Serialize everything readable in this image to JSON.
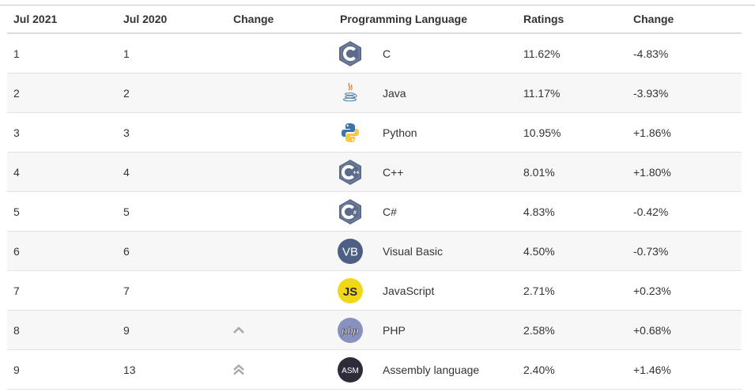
{
  "table": {
    "headers": [
      "Jul 2021",
      "Jul 2020",
      "Change",
      "Programming Language",
      "Ratings",
      "Change"
    ],
    "rows": [
      {
        "jul2021": "1",
        "jul2020": "1",
        "change_icon": "",
        "logo": "c-logo-icon",
        "language": "C",
        "rating": "11.62%",
        "change": "-4.83%"
      },
      {
        "jul2021": "2",
        "jul2020": "2",
        "change_icon": "",
        "logo": "java-logo-icon",
        "language": "Java",
        "rating": "11.17%",
        "change": "-3.93%"
      },
      {
        "jul2021": "3",
        "jul2020": "3",
        "change_icon": "",
        "logo": "python-logo-icon",
        "language": "Python",
        "rating": "10.95%",
        "change": "+1.86%"
      },
      {
        "jul2021": "4",
        "jul2020": "4",
        "change_icon": "",
        "logo": "cpp-logo-icon",
        "language": "C++",
        "rating": "8.01%",
        "change": "+1.80%"
      },
      {
        "jul2021": "5",
        "jul2020": "5",
        "change_icon": "",
        "logo": "csharp-logo-icon",
        "language": "C#",
        "rating": "4.83%",
        "change": "-0.42%"
      },
      {
        "jul2021": "6",
        "jul2020": "6",
        "change_icon": "",
        "logo": "visual-basic-logo-icon",
        "language": "Visual Basic",
        "rating": "4.50%",
        "change": "-0.73%"
      },
      {
        "jul2021": "7",
        "jul2020": "7",
        "change_icon": "",
        "logo": "javascript-logo-icon",
        "language": "JavaScript",
        "rating": "2.71%",
        "change": "+0.23%"
      },
      {
        "jul2021": "8",
        "jul2020": "9",
        "change_icon": "chevron-up-icon",
        "logo": "php-logo-icon",
        "language": "PHP",
        "rating": "2.58%",
        "change": "+0.68%"
      },
      {
        "jul2021": "9",
        "jul2020": "13",
        "change_icon": "double-chevron-up-icon",
        "logo": "assembly-logo-icon",
        "language": "Assembly language",
        "rating": "2.40%",
        "change": "+1.46%"
      }
    ]
  },
  "colors": {
    "text": "#333333",
    "header_border": "#dcdcdc",
    "row_border": "#e2e2e2",
    "row_stripe": "#f7f7f7",
    "c_logo": "#5c6b8a",
    "python_blue": "#3b75a8",
    "python_yellow": "#f6c945",
    "vb_logo": "#4e5f86",
    "js_logo": "#f0d819",
    "php_logo": "#8892bf",
    "asm_logo": "#2d2d3a",
    "chevron": "#a8a8a8"
  }
}
